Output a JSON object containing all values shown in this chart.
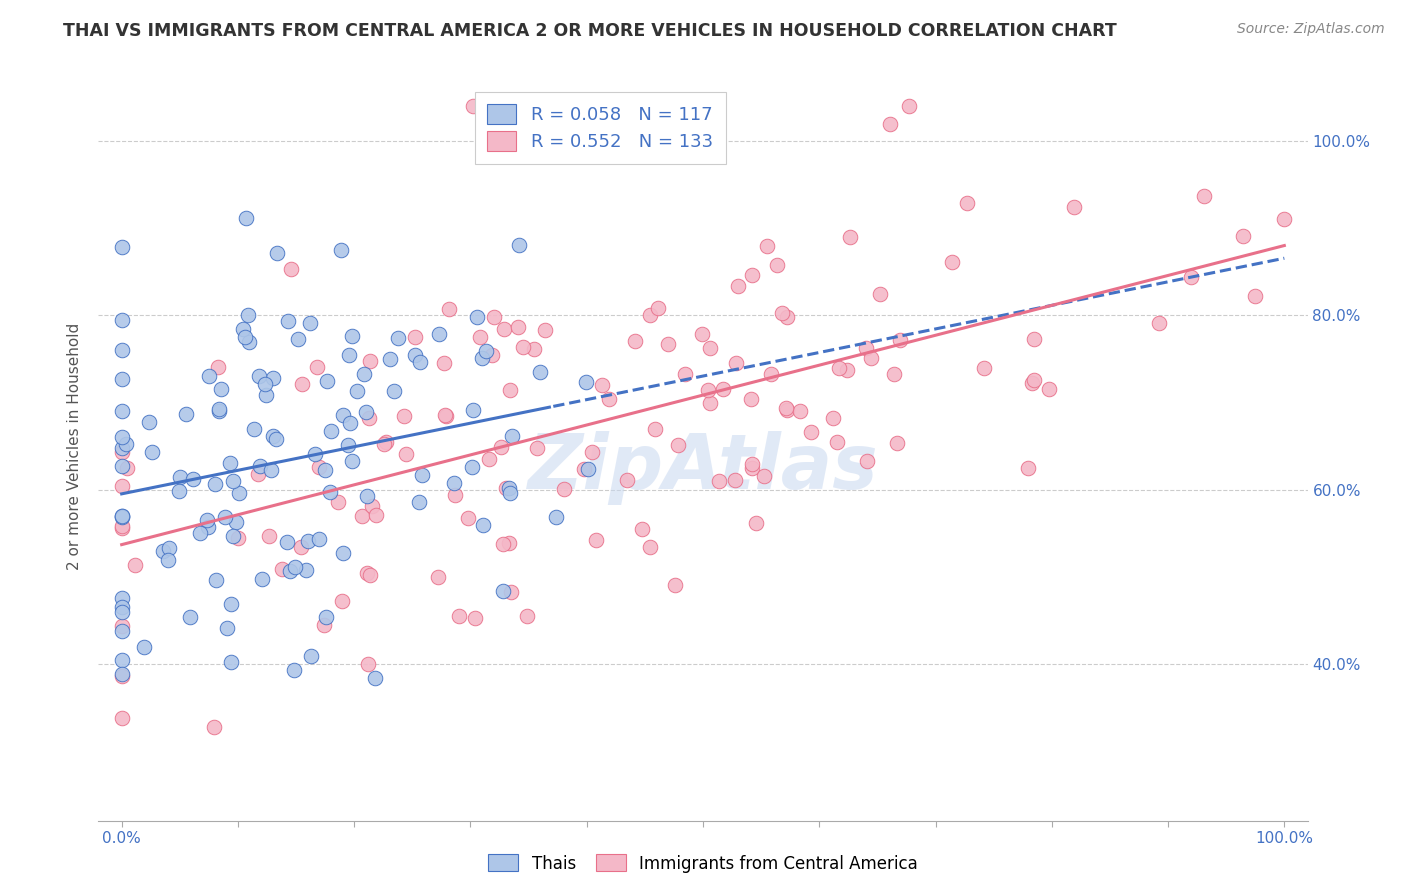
{
  "title": "THAI VS IMMIGRANTS FROM CENTRAL AMERICA 2 OR MORE VEHICLES IN HOUSEHOLD CORRELATION CHART",
  "source": "Source: ZipAtlas.com",
  "ylabel": "2 or more Vehicles in Household",
  "ytick_labels": [
    "40.0%",
    "60.0%",
    "80.0%",
    "100.0%"
  ],
  "ytick_values": [
    0.4,
    0.6,
    0.8,
    1.0
  ],
  "xlim": [
    -0.02,
    1.02
  ],
  "ylim": [
    0.22,
    1.08
  ],
  "legend_blue_r": "R = 0.058",
  "legend_blue_n": "N = 117",
  "legend_pink_r": "R = 0.552",
  "legend_pink_n": "N = 133",
  "legend_label_blue": "Thais",
  "legend_label_pink": "Immigrants from Central America",
  "blue_fill": "#aec6e8",
  "pink_fill": "#f4b8c8",
  "blue_edge": "#4472c4",
  "pink_edge": "#e8708a",
  "line_blue": "#4472c4",
  "line_pink": "#e8708a",
  "watermark_text": "ZipAtlas",
  "watermark_color": "#c8d8f0",
  "title_fontsize": 12.5,
  "source_fontsize": 10,
  "label_fontsize": 11,
  "tick_fontsize": 11,
  "n_blue": 117,
  "n_pink": 133,
  "r_blue": 0.058,
  "r_pink": 0.552
}
